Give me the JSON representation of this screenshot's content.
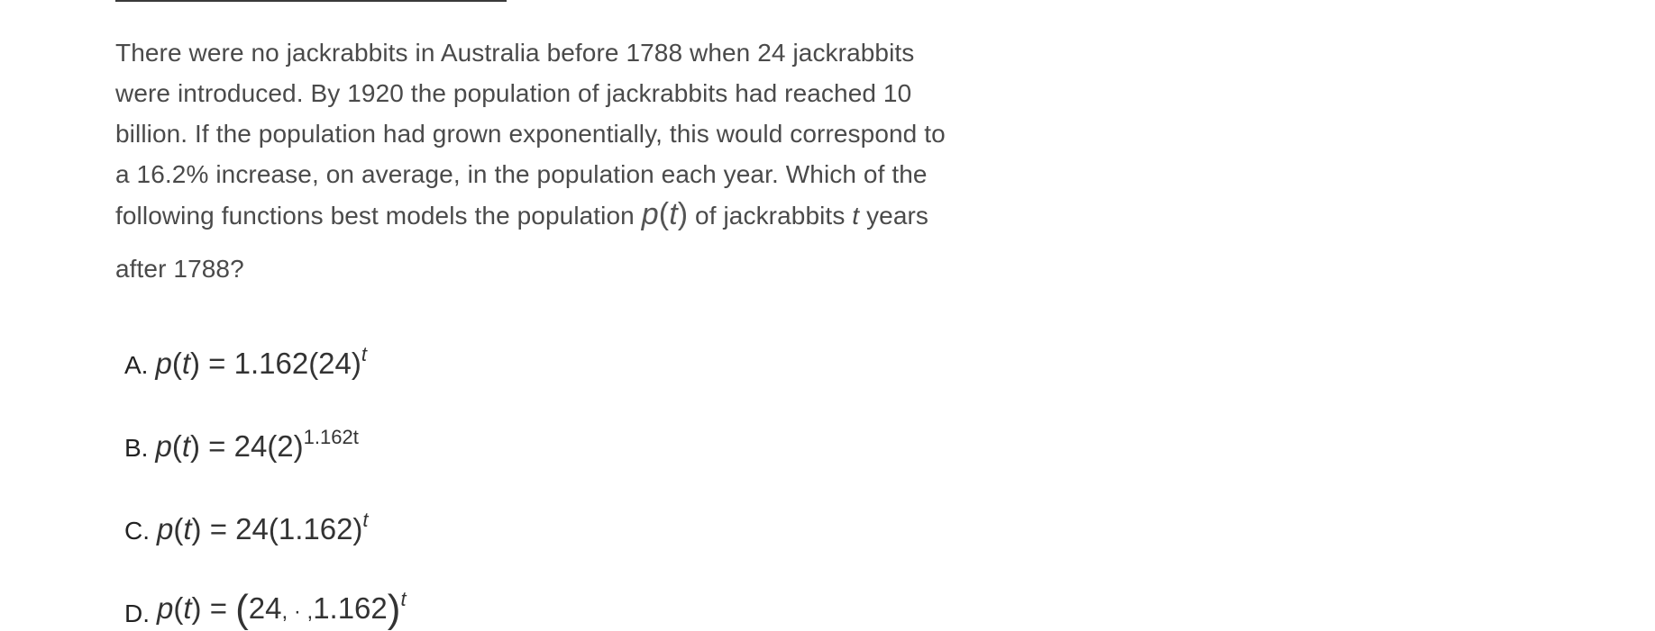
{
  "question": {
    "line1": "There were no jackrabbits in Australia before 1788 when 24 jackrabbits",
    "line2": "were introduced. By 1920 the population of jackrabbits had reached 10",
    "line3": "billion. If the population had grown exponentially, this would correspond to",
    "line4": "a 16.2% increase, on average, in the population each year. Which of the",
    "line5_a": "following functions best models the population ",
    "line5_math_p": "p",
    "line5_math_t": "t",
    "line5_b": " of jackrabbits ",
    "line5_var": "t",
    "line5_c": " years",
    "line6": "after 1788?"
  },
  "choices": [
    {
      "letter": "A.",
      "lhs": "p",
      "arg": "t",
      "rhs": "1.162(24)",
      "exp": "t"
    },
    {
      "letter": "B.",
      "lhs": "p",
      "arg": "t",
      "rhs": "24(2)",
      "exp": "1.162t"
    },
    {
      "letter": "C.",
      "lhs": "p",
      "arg": "t",
      "rhs": "24(1.162)",
      "exp": "t"
    },
    {
      "letter": "D.",
      "lhs": "p",
      "arg": "t",
      "rhs_a": "24",
      "rhs_sep": ", · ,",
      "rhs_b": "1.162",
      "exp": "t"
    }
  ]
}
